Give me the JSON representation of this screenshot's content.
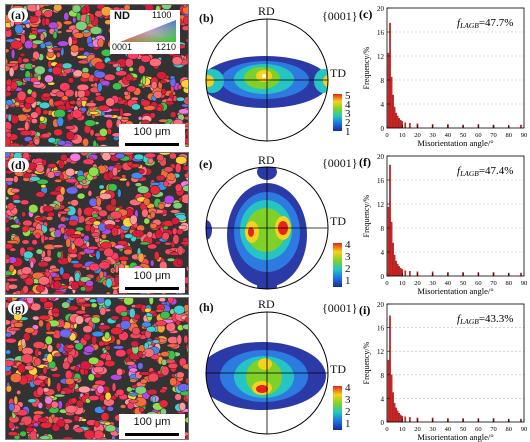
{
  "rows": [
    {
      "ebsd_label": "(a)",
      "pf_label": "(b)",
      "hist_label": "(c)",
      "flagb_value": "=47.7%",
      "pf_colorbar_ticks": [
        "5",
        "4",
        "3",
        "2",
        "1"
      ]
    },
    {
      "ebsd_label": "(d)",
      "pf_label": "(e)",
      "hist_label": "(f)",
      "flagb_value": "=47.4%",
      "pf_colorbar_ticks": [
        "4",
        "3",
        "2",
        "1"
      ]
    },
    {
      "ebsd_label": "(g)",
      "pf_label": "(h)",
      "hist_label": "(i)",
      "flagb_value": "=43.3%",
      "pf_colorbar_ticks": [
        "4",
        "3",
        "2",
        "1"
      ]
    }
  ],
  "ebsd": {
    "scale_text": "100 μm",
    "legend": {
      "axis": "ND",
      "corner_top": "1100",
      "corner_left": "0001",
      "corner_right": "1210"
    }
  },
  "pole_figure": {
    "rd": "RD",
    "td": "TD",
    "plane": "{0001}"
  },
  "histogram": {
    "ylabel": "Frequency/%",
    "xlabel": "Misorientation angle/°",
    "flagb_main": "f",
    "flagb_sub": "LAGB",
    "yticks": [
      "20",
      "16",
      "12",
      "8",
      "4",
      "0"
    ],
    "xticks": [
      "0",
      "10",
      "20",
      "30",
      "40",
      "50",
      "60",
      "70",
      "80",
      "90"
    ]
  },
  "chart_data": [
    {
      "type": "bar",
      "title": "",
      "xlabel": "Misorientation angle/°",
      "ylabel": "Frequency/%",
      "xlim": [
        0,
        90
      ],
      "ylim": [
        0,
        20
      ],
      "grid": "horizontal dashed",
      "annotation": "f_LAGB=47.7%",
      "x": [
        1,
        2,
        3,
        4,
        5,
        6,
        7,
        8,
        9,
        10,
        12,
        15,
        20,
        30,
        40,
        50,
        60,
        70,
        80,
        88
      ],
      "values": [
        12.5,
        17.5,
        8.5,
        5.5,
        3.5,
        2.5,
        2.0,
        1.6,
        1.3,
        1.1,
        0.9,
        0.8,
        0.7,
        0.6,
        0.6,
        0.5,
        0.6,
        0.5,
        0.4,
        0.5
      ]
    },
    {
      "type": "bar",
      "title": "",
      "xlabel": "Misorientation angle/°",
      "ylabel": "Frequency/%",
      "xlim": [
        0,
        90
      ],
      "ylim": [
        0,
        20
      ],
      "grid": "horizontal dashed",
      "annotation": "f_LAGB=47.4%",
      "x": [
        1,
        2,
        3,
        4,
        5,
        6,
        7,
        8,
        9,
        10,
        12,
        15,
        20,
        30,
        40,
        50,
        60,
        70,
        80,
        88
      ],
      "values": [
        11.5,
        18.5,
        9.0,
        5.5,
        3.5,
        2.5,
        2.0,
        1.6,
        1.3,
        1.1,
        0.9,
        0.8,
        0.7,
        0.7,
        0.6,
        0.6,
        0.6,
        0.6,
        0.5,
        0.5
      ]
    },
    {
      "type": "bar",
      "title": "",
      "xlabel": "Misorientation angle/°",
      "ylabel": "Frequency/%",
      "xlim": [
        0,
        90
      ],
      "ylim": [
        0,
        20
      ],
      "grid": "horizontal dashed",
      "annotation": "f_LAGB=43.3%",
      "x": [
        1,
        2,
        3,
        4,
        5,
        6,
        7,
        8,
        9,
        10,
        12,
        15,
        20,
        30,
        40,
        50,
        60,
        70,
        80,
        88
      ],
      "values": [
        10.5,
        18.0,
        8.0,
        5.0,
        3.2,
        2.4,
        1.9,
        1.5,
        1.2,
        1.0,
        0.9,
        0.8,
        0.7,
        0.7,
        0.6,
        0.6,
        0.6,
        0.6,
        0.5,
        0.5
      ]
    }
  ]
}
